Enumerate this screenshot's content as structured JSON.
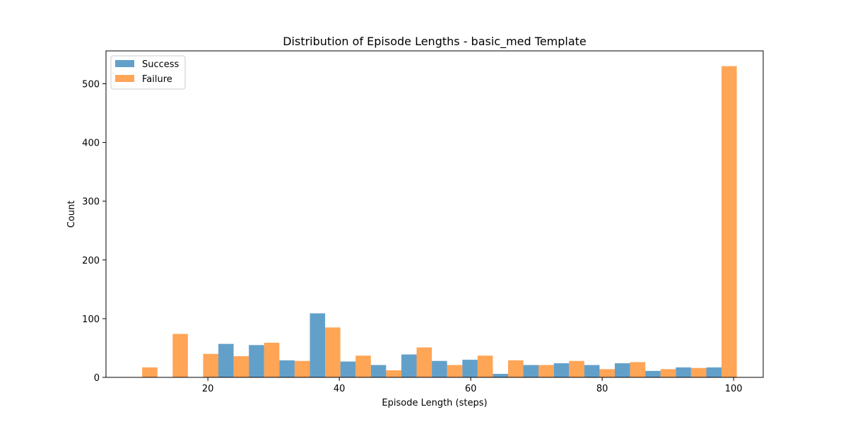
{
  "chart_data": {
    "type": "bar",
    "title": "Distribution of Episode Lengths - basic_med Template",
    "xlabel": "Episode Length (steps)",
    "ylabel": "Count",
    "xlim": [
      4.5,
      104.5
    ],
    "ylim": [
      0,
      556
    ],
    "xticks": [
      20,
      40,
      60,
      80,
      100
    ],
    "yticks": [
      0,
      100,
      200,
      300,
      400,
      500
    ],
    "x": [
      10,
      14.64,
      19.28,
      23.92,
      28.56,
      33.2,
      37.84,
      42.48,
      47.12,
      51.76,
      56.4,
      61.04,
      65.68,
      70.32,
      74.96,
      79.6,
      84.24,
      88.88,
      93.52,
      98.16
    ],
    "bin_width": 4.64,
    "grid": false,
    "legend_position": "upper-left",
    "series": [
      {
        "name": "Success",
        "color": "#1f77b4",
        "values": [
          0,
          0,
          0,
          57,
          55,
          29,
          109,
          27,
          21,
          39,
          28,
          30,
          6,
          21,
          24,
          21,
          24,
          11,
          17,
          17
        ]
      },
      {
        "name": "Failure",
        "color": "#ff7f0e",
        "values": [
          17,
          74,
          40,
          36,
          59,
          28,
          85,
          37,
          12,
          51,
          21,
          37,
          29,
          21,
          28,
          14,
          26,
          14,
          16,
          530
        ]
      }
    ]
  }
}
